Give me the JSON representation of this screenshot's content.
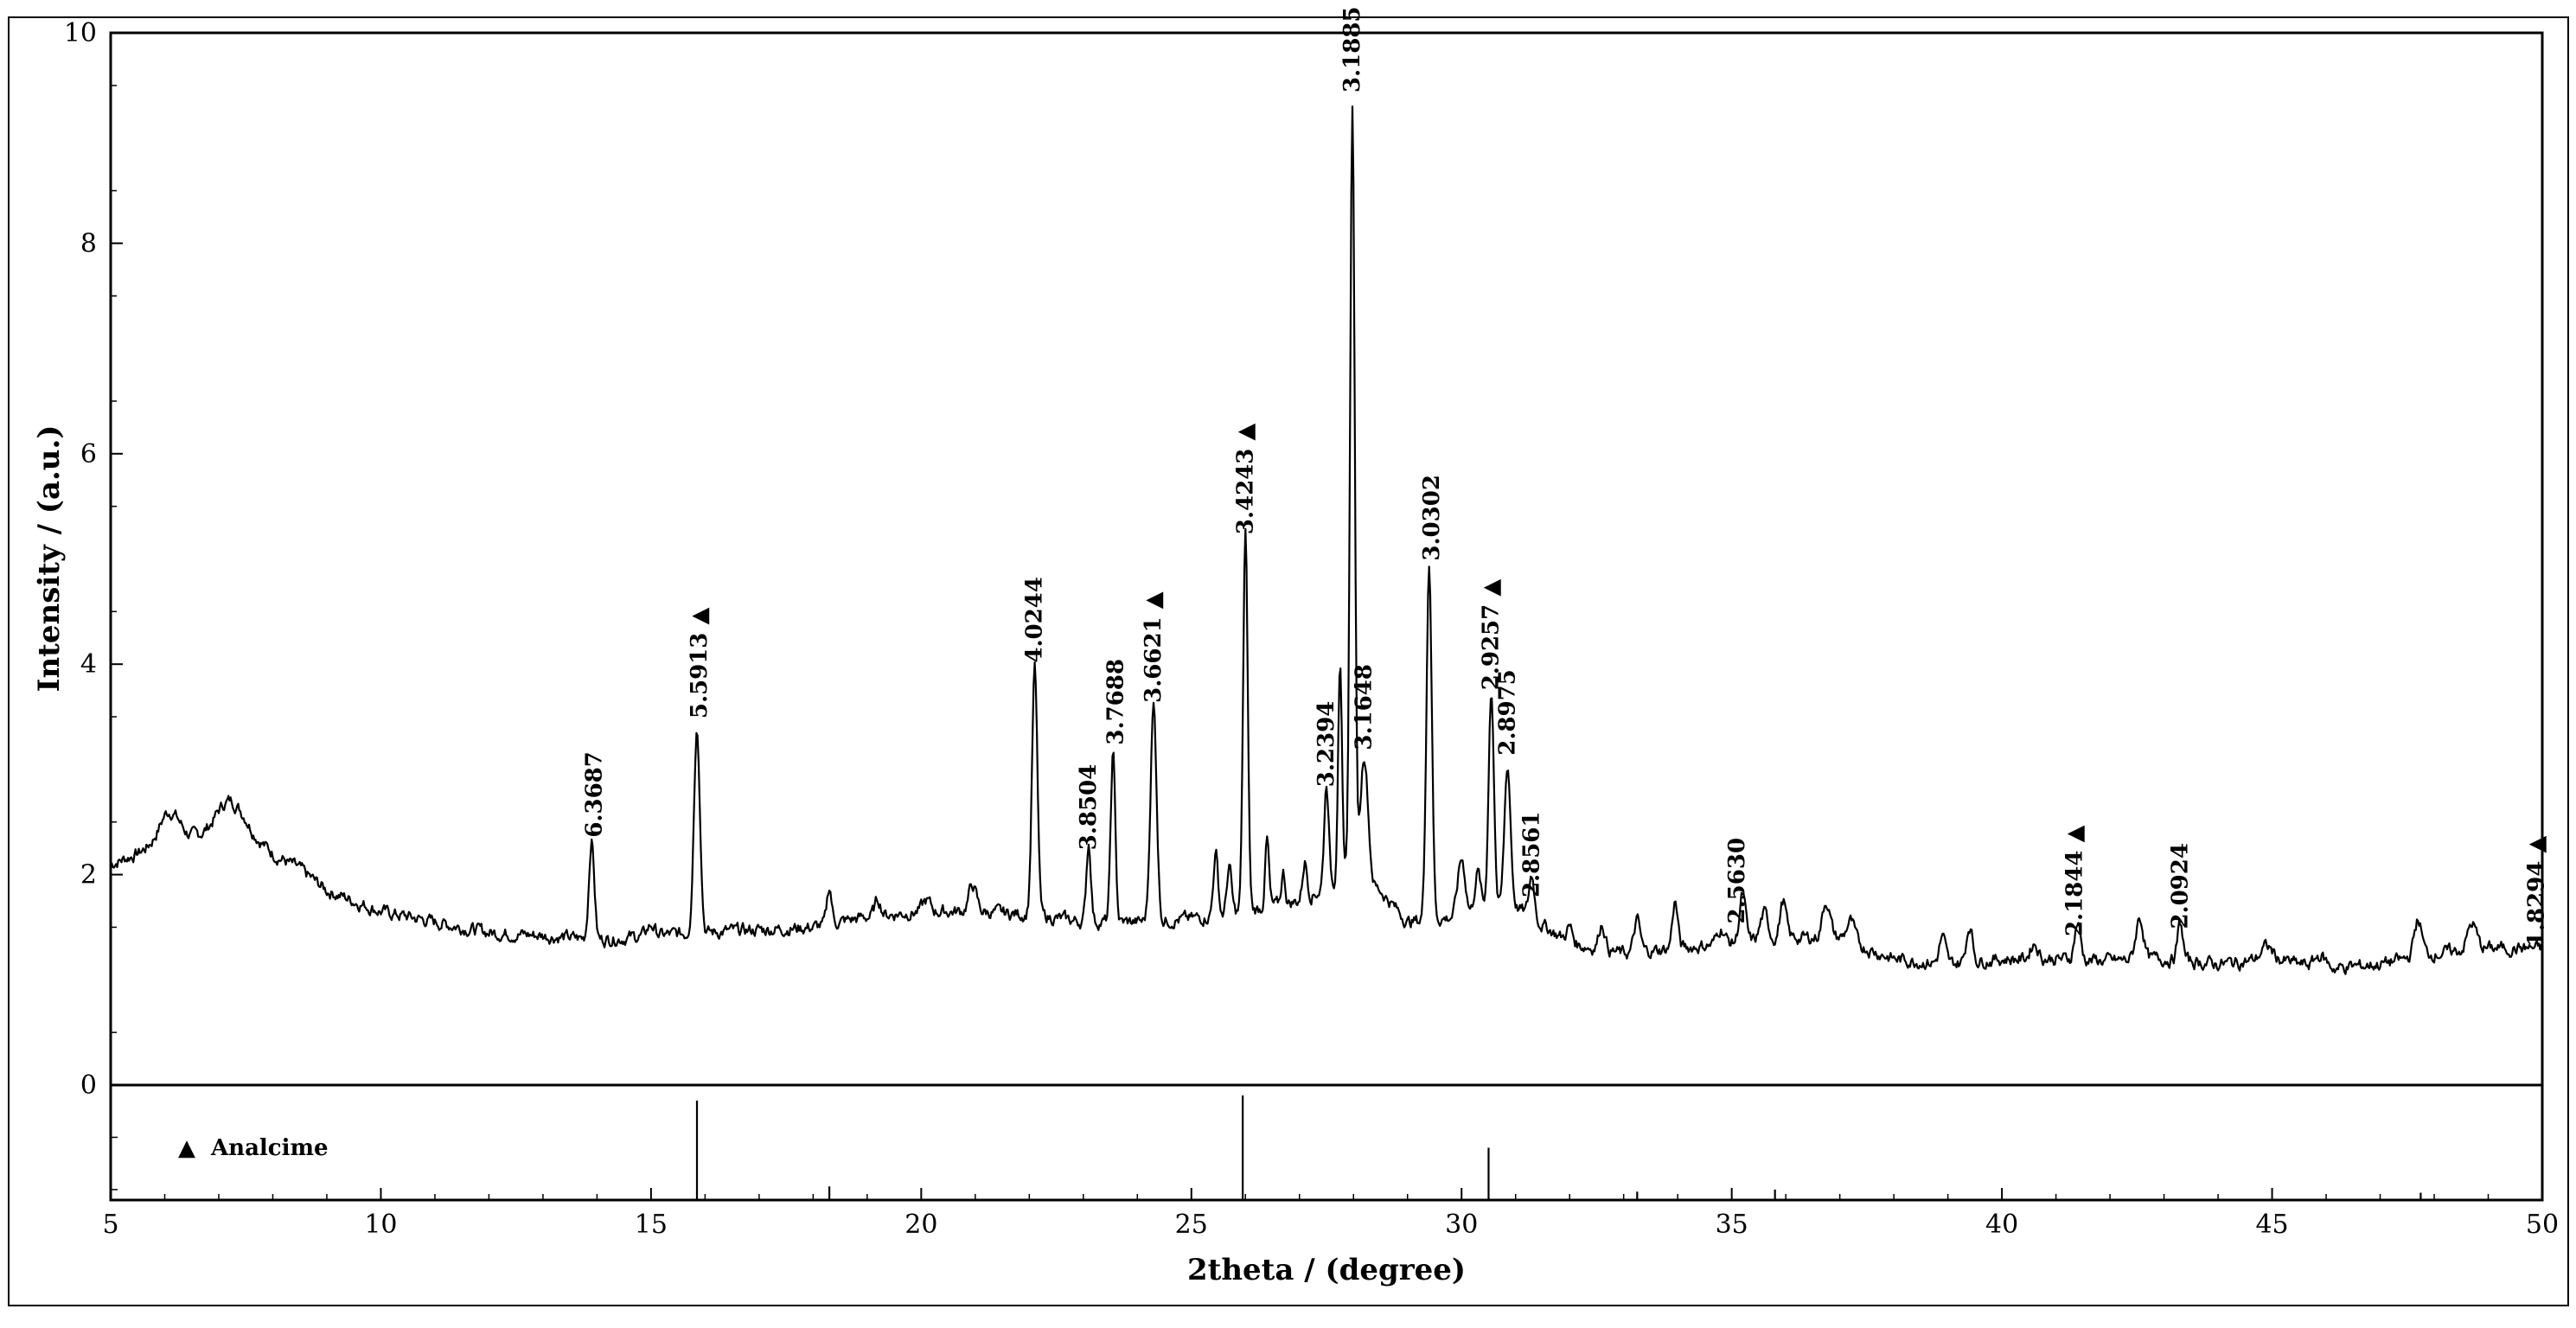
{
  "chart_data": {
    "type": "line",
    "xlabel": "2theta / (degree)",
    "ylabel": "Intensity / (a.u.)",
    "xlim": [
      5,
      50
    ],
    "ylim": [
      0,
      10
    ],
    "ref_ylim": [
      -1.1,
      0
    ],
    "x_ticks": [
      5,
      10,
      15,
      20,
      25,
      30,
      35,
      40,
      45,
      50
    ],
    "y_ticks": [
      0,
      2,
      4,
      6,
      8,
      10
    ],
    "grid": false,
    "legend": {
      "position": "bottom-left",
      "marker": "▲",
      "label": "Analcime"
    },
    "series": [
      {
        "type": "line",
        "color": "#000000",
        "noise": 0.045,
        "baseline": [
          [
            5,
            2.1
          ],
          [
            5.5,
            2.2
          ],
          [
            6.0,
            2.35
          ],
          [
            6.5,
            2.35
          ],
          [
            7.0,
            2.45
          ],
          [
            7.5,
            2.45
          ],
          [
            8.0,
            2.2
          ],
          [
            8.5,
            2.05
          ],
          [
            9.0,
            1.85
          ],
          [
            9.5,
            1.75
          ],
          [
            10,
            1.65
          ],
          [
            11,
            1.55
          ],
          [
            12,
            1.45
          ],
          [
            13,
            1.42
          ],
          [
            14,
            1.38
          ],
          [
            15,
            1.42
          ],
          [
            16,
            1.45
          ],
          [
            18,
            1.5
          ],
          [
            19,
            1.6
          ],
          [
            20,
            1.65
          ],
          [
            21,
            1.65
          ],
          [
            22,
            1.62
          ],
          [
            23,
            1.55
          ],
          [
            24,
            1.55
          ],
          [
            25,
            1.58
          ],
          [
            26,
            1.65
          ],
          [
            27,
            1.75
          ],
          [
            28,
            2.0
          ],
          [
            28.5,
            1.85
          ],
          [
            29,
            1.55
          ],
          [
            30,
            1.6
          ],
          [
            31,
            1.7
          ],
          [
            32,
            1.35
          ],
          [
            33,
            1.25
          ],
          [
            34,
            1.3
          ],
          [
            35,
            1.35
          ],
          [
            36,
            1.4
          ],
          [
            37,
            1.4
          ],
          [
            38,
            1.2
          ],
          [
            39,
            1.15
          ],
          [
            40,
            1.2
          ],
          [
            41,
            1.2
          ],
          [
            42,
            1.18
          ],
          [
            43,
            1.2
          ],
          [
            44,
            1.15
          ],
          [
            45,
            1.2
          ],
          [
            46,
            1.1
          ],
          [
            47,
            1.15
          ],
          [
            48,
            1.25
          ],
          [
            49,
            1.3
          ],
          [
            50,
            1.3
          ]
        ],
        "peaks": [
          [
            6.1,
            0.25,
            0.25
          ],
          [
            7.2,
            0.25,
            0.3
          ],
          [
            13.9,
            0.95,
            0.07
          ],
          [
            15.0,
            0.1,
            0.1
          ],
          [
            15.85,
            1.95,
            0.08
          ],
          [
            18.3,
            0.35,
            0.06
          ],
          [
            19.2,
            0.15,
            0.08
          ],
          [
            20.1,
            0.1,
            0.1
          ],
          [
            20.95,
            0.25,
            0.1
          ],
          [
            22.1,
            2.35,
            0.07
          ],
          [
            23.1,
            0.75,
            0.06
          ],
          [
            23.55,
            1.6,
            0.06
          ],
          [
            24.3,
            2.05,
            0.08
          ],
          [
            25.45,
            0.6,
            0.06
          ],
          [
            25.7,
            0.45,
            0.06
          ],
          [
            26.0,
            3.6,
            0.06
          ],
          [
            26.4,
            0.65,
            0.05
          ],
          [
            26.7,
            0.3,
            0.05
          ],
          [
            27.1,
            0.35,
            0.06
          ],
          [
            27.5,
            1.0,
            0.06
          ],
          [
            27.75,
            2.1,
            0.05
          ],
          [
            27.98,
            7.3,
            0.06
          ],
          [
            28.2,
            1.2,
            0.1
          ],
          [
            29.4,
            3.4,
            0.07
          ],
          [
            30.0,
            0.55,
            0.1
          ],
          [
            30.3,
            0.4,
            0.08
          ],
          [
            30.55,
            2.1,
            0.07
          ],
          [
            30.85,
            1.35,
            0.08
          ],
          [
            31.3,
            0.4,
            0.07
          ],
          [
            32.0,
            0.15,
            0.08
          ],
          [
            32.6,
            0.25,
            0.08
          ],
          [
            33.25,
            0.3,
            0.08
          ],
          [
            33.95,
            0.45,
            0.07
          ],
          [
            34.8,
            0.15,
            0.1
          ],
          [
            35.2,
            0.45,
            0.08
          ],
          [
            35.6,
            0.25,
            0.1
          ],
          [
            35.95,
            0.35,
            0.08
          ],
          [
            36.75,
            0.35,
            0.1
          ],
          [
            37.2,
            0.2,
            0.1
          ],
          [
            38.9,
            0.25,
            0.08
          ],
          [
            39.4,
            0.35,
            0.08
          ],
          [
            40.6,
            0.15,
            0.1
          ],
          [
            41.4,
            0.35,
            0.08
          ],
          [
            42.55,
            0.4,
            0.1
          ],
          [
            43.3,
            0.35,
            0.07
          ],
          [
            44.9,
            0.12,
            0.15
          ],
          [
            45.9,
            0.12,
            0.15
          ],
          [
            47.7,
            0.35,
            0.1
          ],
          [
            48.7,
            0.25,
            0.12
          ]
        ]
      }
    ],
    "peak_labels": [
      {
        "x": 13.95,
        "y": 2.32,
        "label": "6.3687",
        "marker": ""
      },
      {
        "x": 15.9,
        "y": 3.45,
        "label": "5.5913",
        "marker": "▲"
      },
      {
        "x": 22.1,
        "y": 3.98,
        "label": "4.0244",
        "marker": ""
      },
      {
        "x": 23.1,
        "y": 2.2,
        "label": "3.8504",
        "marker": ""
      },
      {
        "x": 23.6,
        "y": 3.2,
        "label": "3.7688",
        "marker": ""
      },
      {
        "x": 24.3,
        "y": 3.6,
        "label": "3.6621",
        "marker": "▲"
      },
      {
        "x": 26.0,
        "y": 5.2,
        "label": "3.4243",
        "marker": "▲"
      },
      {
        "x": 27.5,
        "y": 2.8,
        "label": "3.2394",
        "marker": ""
      },
      {
        "x": 27.98,
        "y": 9.4,
        "label": "3.1885",
        "marker": ""
      },
      {
        "x": 28.2,
        "y": 3.15,
        "label": "3.1648",
        "marker": ""
      },
      {
        "x": 29.45,
        "y": 4.95,
        "label": "3.0302",
        "marker": ""
      },
      {
        "x": 30.55,
        "y": 3.72,
        "label": "2.9257",
        "marker": "▲"
      },
      {
        "x": 30.85,
        "y": 3.1,
        "label": "2.8975",
        "marker": ""
      },
      {
        "x": 31.3,
        "y": 1.75,
        "label": "2.8561",
        "marker": ""
      },
      {
        "x": 35.1,
        "y": 1.5,
        "label": "2.5630",
        "marker": ""
      },
      {
        "x": 41.35,
        "y": 1.38,
        "label": "2.1844",
        "marker": "▲"
      },
      {
        "x": 43.3,
        "y": 1.45,
        "label": "2.0924",
        "marker": ""
      },
      {
        "x": 49.9,
        "y": 1.28,
        "label": "1.8294",
        "marker": "▲"
      }
    ],
    "reference_pattern": {
      "name": "Analcime",
      "sticks": [
        {
          "x": 15.85,
          "intensity": 1.0
        },
        {
          "x": 18.3,
          "intensity": 0.18
        },
        {
          "x": 24.25,
          "intensity": 0.05
        },
        {
          "x": 25.95,
          "intensity": 1.05
        },
        {
          "x": 30.5,
          "intensity": 0.55
        },
        {
          "x": 31.9,
          "intensity": 0.05
        },
        {
          "x": 33.25,
          "intensity": 0.13
        },
        {
          "x": 35.8,
          "intensity": 0.15
        },
        {
          "x": 37.0,
          "intensity": 0.06
        },
        {
          "x": 40.5,
          "intensity": 0.05
        },
        {
          "x": 47.75,
          "intensity": 0.12
        },
        {
          "x": 48.7,
          "intensity": 0.05
        }
      ]
    }
  }
}
